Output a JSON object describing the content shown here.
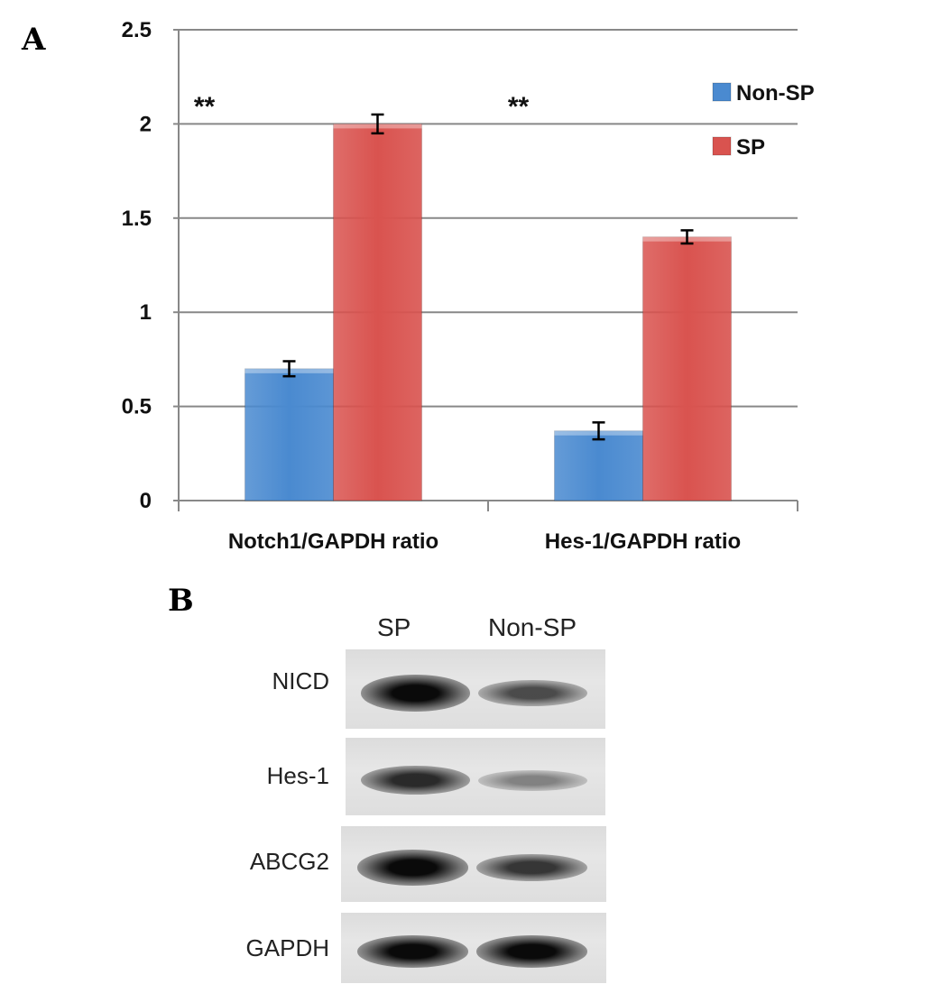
{
  "panels": {
    "a_letter": "A",
    "b_letter": "B"
  },
  "chart_data": {
    "type": "bar",
    "categories": [
      "Notch1/GAPDH ratio",
      "Hes-1/GAPDH ratio"
    ],
    "series": [
      {
        "name": "Non-SP",
        "color": "#4a8ad0",
        "values": [
          0.7,
          0.37
        ],
        "errors": [
          0.04,
          0.045
        ]
      },
      {
        "name": "SP",
        "color": "#d9534f",
        "values": [
          2.0,
          1.4
        ],
        "errors": [
          0.05,
          0.035
        ]
      }
    ],
    "significance": [
      "**",
      "**"
    ],
    "ylim": [
      0,
      2.5
    ],
    "yticks": [
      "0",
      "0.5",
      "1",
      "1.5",
      "2",
      "2.5"
    ],
    "grid": true,
    "legend_position": "top-right"
  },
  "blot": {
    "lanes": [
      "SP",
      "Non-SP"
    ],
    "rows": [
      {
        "label": "NICD",
        "intensities": [
          0.95,
          0.45
        ]
      },
      {
        "label": "Hes-1",
        "intensities": [
          0.6,
          0.2
        ]
      },
      {
        "label": "ABCG2",
        "intensities": [
          1.0,
          0.55
        ]
      },
      {
        "label": "GAPDH",
        "intensities": [
          0.95,
          0.95
        ]
      }
    ]
  }
}
